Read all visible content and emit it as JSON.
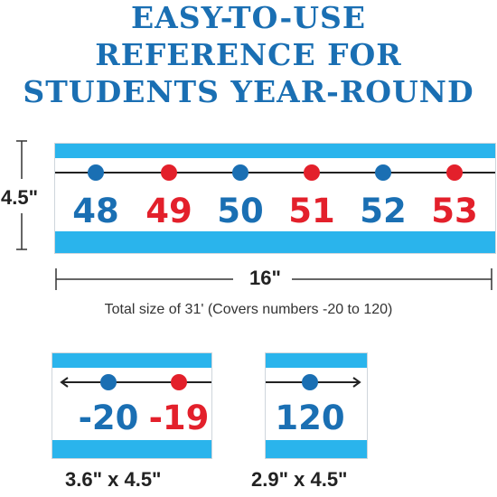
{
  "headline": {
    "line1": "EASY-TO-USE",
    "line2": "REFERENCE FOR",
    "line3": "STUDENTS YEAR-ROUND"
  },
  "main_strip": {
    "numbers": [
      "48",
      "49",
      "50",
      "51",
      "52",
      "53"
    ],
    "height_label": "4.5\"",
    "width_label": "16\"",
    "total_note": "Total size of 31' (Covers numbers -20 to 120)"
  },
  "start_card": {
    "numbers": [
      "-20",
      "-19"
    ],
    "size_label": "3.6\" x 4.5\""
  },
  "end_card": {
    "number": "120",
    "size_label": "2.9\" x 4.5\""
  },
  "colors": {
    "blue": "#1a6fb3",
    "red": "#e3202b",
    "band": "#2ab4ec"
  }
}
